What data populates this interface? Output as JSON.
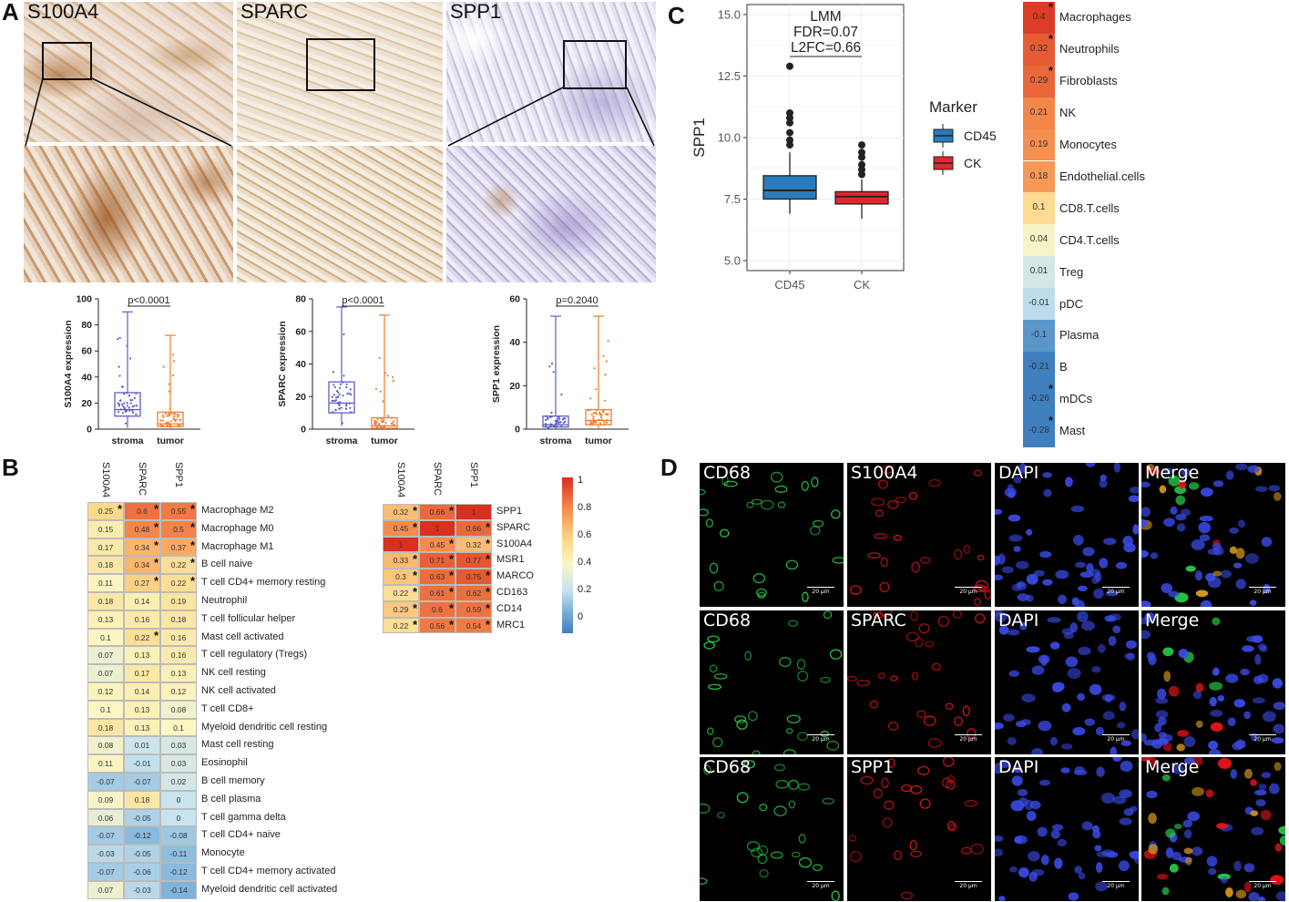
{
  "panels": {
    "a": "A",
    "b": "B",
    "c": "C",
    "d": "D"
  },
  "panel_a": {
    "stains": [
      "S100A4",
      "SPARC",
      "SPP1"
    ],
    "colors": {
      "stroma": "#5b5fc7",
      "tumor": "#f07c2a"
    },
    "boxplots": [
      {
        "ylabel": "S100A4 expression",
        "pvalue": "p<0.0001",
        "yticks": [
          "0",
          "20",
          "40",
          "60",
          "80",
          "100"
        ],
        "ymax": 100,
        "groups": [
          {
            "label": "stroma",
            "min": 1,
            "q1": 10,
            "median": 15,
            "q3": 28,
            "max": 90
          },
          {
            "label": "tumor",
            "min": 0,
            "q1": 2,
            "median": 4,
            "q3": 13,
            "max": 72
          }
        ]
      },
      {
        "ylabel": "SPARC expression",
        "pvalue": "p<0.0001",
        "yticks": [
          "0",
          "20",
          "40",
          "60",
          "80"
        ],
        "ymax": 80,
        "groups": [
          {
            "label": "stroma",
            "min": 2,
            "q1": 10,
            "median": 16,
            "q3": 29,
            "max": 75
          },
          {
            "label": "tumor",
            "min": 0,
            "q1": 0.5,
            "median": 2,
            "q3": 7,
            "max": 70
          }
        ]
      },
      {
        "ylabel": "SPP1 expression",
        "pvalue": "p=0.2040",
        "yticks": [
          "0",
          "20",
          "40",
          "60"
        ],
        "ymax": 60,
        "groups": [
          {
            "label": "stroma",
            "min": 0,
            "q1": 1,
            "median": 2,
            "q3": 6,
            "max": 52
          },
          {
            "label": "tumor",
            "min": 0,
            "q1": 2,
            "median": 4,
            "q3": 9,
            "max": 52
          }
        ]
      }
    ]
  },
  "panel_b_left": {
    "columns": [
      "S100A4",
      "SPARC",
      "SPP1"
    ],
    "rows": [
      {
        "label": "Macrophage M2",
        "values": [
          "0.25",
          "0.6",
          "0.55"
        ],
        "stars": [
          true,
          true,
          true
        ]
      },
      {
        "label": "Macrophage M0",
        "values": [
          "0.15",
          "0.48",
          "0.5"
        ],
        "stars": [
          false,
          true,
          true
        ]
      },
      {
        "label": "Macrophage M1",
        "values": [
          "0.17",
          "0.34",
          "0.37"
        ],
        "stars": [
          false,
          true,
          true
        ]
      },
      {
        "label": "B cell naive",
        "values": [
          "0.18",
          "0.34",
          "0.22"
        ],
        "stars": [
          false,
          true,
          true
        ]
      },
      {
        "label": "T cell CD4+ memory resting",
        "values": [
          "0.11",
          "0.27",
          "0.22"
        ],
        "stars": [
          false,
          true,
          true
        ]
      },
      {
        "label": "Neutrophil",
        "values": [
          "0.18",
          "0.14",
          "0.19"
        ],
        "stars": [
          false,
          false,
          false
        ]
      },
      {
        "label": "T cell follicular helper",
        "values": [
          "0.13",
          "0.16",
          "0.18"
        ],
        "stars": [
          false,
          false,
          false
        ]
      },
      {
        "label": "Mast cell activated",
        "values": [
          "0.1",
          "0.22",
          "0.16"
        ],
        "stars": [
          false,
          true,
          false
        ]
      },
      {
        "label": "T cell regulatory (Tregs)",
        "values": [
          "0.07",
          "0.13",
          "0.16"
        ],
        "stars": [
          false,
          false,
          false
        ]
      },
      {
        "label": "NK cell resting",
        "values": [
          "0.07",
          "0.17",
          "0.13"
        ],
        "stars": [
          false,
          false,
          false
        ]
      },
      {
        "label": "NK cell activated",
        "values": [
          "0.12",
          "0.14",
          "0.12"
        ],
        "stars": [
          false,
          false,
          false
        ]
      },
      {
        "label": "T cell CD8+",
        "values": [
          "0.1",
          "0.13",
          "0.08"
        ],
        "stars": [
          false,
          false,
          false
        ]
      },
      {
        "label": "Myeloid dendritic cell resting",
        "values": [
          "0.18",
          "0.13",
          "0.1"
        ],
        "stars": [
          false,
          false,
          false
        ]
      },
      {
        "label": "Mast cell resting",
        "values": [
          "0.08",
          "0.01",
          "0.03"
        ],
        "stars": [
          false,
          false,
          false
        ]
      },
      {
        "label": "Eosinophil",
        "values": [
          "0.11",
          "-0.01",
          "0.03"
        ],
        "stars": [
          false,
          false,
          false
        ]
      },
      {
        "label": "B cell memory",
        "values": [
          "-0.07",
          "-0.07",
          "0.02"
        ],
        "stars": [
          false,
          false,
          false
        ]
      },
      {
        "label": "B cell plasma",
        "values": [
          "0.09",
          "0.18",
          "0"
        ],
        "stars": [
          false,
          false,
          false
        ]
      },
      {
        "label": "T cell gamma delta",
        "values": [
          "0.06",
          "-0.05",
          "0"
        ],
        "stars": [
          false,
          false,
          false
        ]
      },
      {
        "label": "T cell CD4+ naive",
        "values": [
          "-0.07",
          "-0.12",
          "-0.08"
        ],
        "stars": [
          false,
          false,
          false
        ]
      },
      {
        "label": "Monocyte",
        "values": [
          "-0.03",
          "-0.05",
          "-0.11"
        ],
        "stars": [
          false,
          false,
          false
        ]
      },
      {
        "label": "T cell CD4+ memory activated",
        "values": [
          "-0.07",
          "-0.06",
          "-0.12"
        ],
        "stars": [
          false,
          false,
          false
        ]
      },
      {
        "label": "Myeloid dendritic cell activated",
        "values": [
          "0.07",
          "-0.03",
          "-0.14"
        ],
        "stars": [
          false,
          false,
          false
        ]
      }
    ]
  },
  "panel_b_right": {
    "columns": [
      "S100A4",
      "SPARC",
      "SPP1"
    ],
    "rows": [
      {
        "label": "SPP1",
        "values": [
          "0.32",
          "0.66",
          "1"
        ],
        "stars": [
          true,
          true,
          false
        ]
      },
      {
        "label": "SPARC",
        "values": [
          "0.45",
          "1",
          "0.66"
        ],
        "stars": [
          true,
          false,
          true
        ]
      },
      {
        "label": "S100A4",
        "values": [
          "1",
          "0.45",
          "0.32"
        ],
        "stars": [
          false,
          true,
          true
        ]
      },
      {
        "label": "MSR1",
        "values": [
          "0.33",
          "0.71",
          "0.77"
        ],
        "stars": [
          true,
          true,
          true
        ]
      },
      {
        "label": "MARCO",
        "values": [
          "0.3",
          "0.63",
          "0.75"
        ],
        "stars": [
          true,
          true,
          true
        ]
      },
      {
        "label": "CD163",
        "values": [
          "0.22",
          "0.61",
          "0.62"
        ],
        "stars": [
          true,
          true,
          true
        ]
      },
      {
        "label": "CD14",
        "values": [
          "0.29",
          "0.6",
          "0.59"
        ],
        "stars": [
          true,
          true,
          true
        ]
      },
      {
        "label": "MRC1",
        "values": [
          "0.22",
          "0.56",
          "0.54"
        ],
        "stars": [
          true,
          true,
          true
        ]
      }
    ],
    "colorbar_ticks": [
      "1",
      "0.8",
      "0.6",
      "0.4",
      "0.2",
      "0"
    ]
  },
  "chart_data": {
    "type": "box",
    "ylabel": "SPP1",
    "ylim": [
      5.0,
      15.0
    ],
    "yticks": [
      "5.0",
      "7.5",
      "10.0",
      "12.5",
      "15.0"
    ],
    "categories": [
      "CD45",
      "CK"
    ],
    "annotation": {
      "test": "LMM",
      "fdr": "FDR=0.07",
      "l2fc": "L2FC=0.66"
    },
    "legend_title": "Marker",
    "series": [
      {
        "name": "CD45",
        "color": "#2b7bba",
        "min": 6.9,
        "q1": 7.5,
        "median": 7.85,
        "q3": 8.45,
        "max": 9.4,
        "outliers": [
          9.7,
          9.9,
          10.2,
          10.6,
          10.8,
          11.0,
          12.9
        ]
      },
      {
        "name": "CK",
        "color": "#e3272e",
        "min": 6.7,
        "q1": 7.3,
        "median": 7.6,
        "q3": 7.8,
        "max": 8.3,
        "outliers": [
          8.5,
          8.7,
          8.9,
          9.2,
          9.4,
          9.7
        ]
      }
    ]
  },
  "panel_c_heatmap": {
    "rows": [
      {
        "label": "Macrophages",
        "value": "0.4",
        "star": true
      },
      {
        "label": "Neutrophils",
        "value": "0.32",
        "star": true
      },
      {
        "label": "Fibroblasts",
        "value": "0.29",
        "star": true
      },
      {
        "label": "NK",
        "value": "0.21",
        "star": false
      },
      {
        "label": "Monocytes",
        "value": "0.19",
        "star": false
      },
      {
        "label": "Endothelial.cells",
        "value": "0.18",
        "star": false
      },
      {
        "label": "CD8.T.cells",
        "value": "0.1",
        "star": false
      },
      {
        "label": "CD4.T.cells",
        "value": "0.04",
        "star": false
      },
      {
        "label": "Treg",
        "value": "0.01",
        "star": false
      },
      {
        "label": "pDC",
        "value": "-0.01",
        "star": false
      },
      {
        "label": "Plasma",
        "value": "-0.1",
        "star": false
      },
      {
        "label": "B",
        "value": "-0.21",
        "star": false
      },
      {
        "label": "mDCs",
        "value": "-0.26",
        "star": true
      },
      {
        "label": "Mast",
        "value": "-0.28",
        "star": true
      }
    ]
  },
  "panel_d": {
    "rows": [
      [
        "CD68",
        "S100A4",
        "DAPI",
        "Merge"
      ],
      [
        "CD68",
        "SPARC",
        "DAPI",
        "Merge"
      ],
      [
        "CD68",
        "SPP1",
        "DAPI",
        "Merge"
      ]
    ],
    "scale": "20 μm",
    "channel_colors": [
      "#2ad14a",
      "#e8141c",
      "#3b4be6",
      "#e0a020"
    ]
  }
}
